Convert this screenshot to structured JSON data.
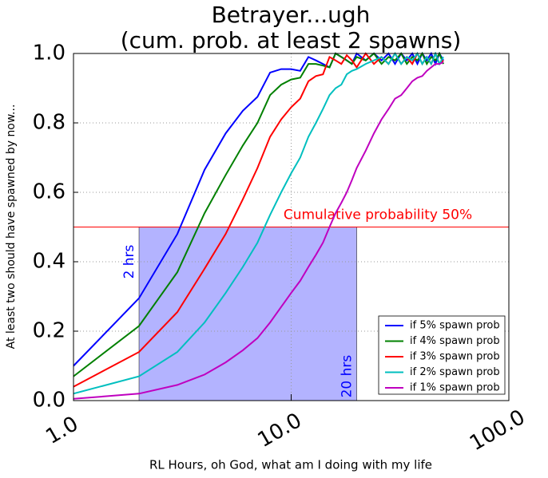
{
  "chart_data": {
    "type": "line",
    "title": "Betrayer...ugh",
    "subtitle": "(cum. prob. at least 2 spawns)",
    "x_label": "RL Hours, oh God, what am I doing with my life",
    "y_label": "At least two should have spawned by now...",
    "log_x": true,
    "grid": true,
    "legend": "lower right",
    "xlim": [
      1,
      100
    ],
    "xticks": [
      {
        "value": 1,
        "label": "1.0"
      },
      {
        "value": 10,
        "label": "10.0"
      },
      {
        "value": 100,
        "label": "100.0"
      }
    ],
    "ylim": [
      0,
      1
    ],
    "yticks": [
      {
        "value": 0,
        "label": "0.0"
      },
      0.2,
      0.4,
      0.6,
      0.8,
      {
        "value": 1,
        "label": "1.0"
      }
    ],
    "x": [
      1,
      2,
      3,
      4,
      5,
      6,
      7,
      8,
      9,
      10,
      11,
      12,
      13,
      14,
      15,
      16,
      17,
      18,
      19,
      20,
      22,
      24,
      26,
      28,
      30,
      32,
      34,
      36,
      38,
      40,
      42,
      44,
      46,
      48,
      50
    ],
    "series": [
      {
        "name": "if 5% spawn prob",
        "color": "#0000ff",
        "values": [
          0.1,
          0.295,
          0.48,
          0.665,
          0.77,
          0.835,
          0.875,
          0.945,
          0.955,
          0.955,
          0.95,
          0.99,
          0.98,
          0.97,
          0.96,
          1.0,
          0.99,
          0.98,
          0.97,
          1.0,
          0.98,
          1.0,
          0.98,
          1.0,
          0.97,
          1.0,
          0.98,
          1.0,
          0.97,
          1.0,
          0.98,
          1.0,
          0.97,
          1.0,
          0.98
        ]
      },
      {
        "name": "if 4% spawn prob",
        "color": "#008000",
        "values": [
          0.07,
          0.215,
          0.37,
          0.54,
          0.65,
          0.735,
          0.8,
          0.88,
          0.91,
          0.925,
          0.93,
          0.97,
          0.97,
          0.965,
          0.96,
          1.0,
          0.99,
          0.98,
          0.97,
          0.99,
          0.98,
          1.0,
          0.97,
          0.99,
          0.98,
          1.0,
          0.97,
          0.99,
          0.98,
          1.0,
          0.97,
          0.99,
          0.98,
          1.0,
          0.97
        ]
      },
      {
        "name": "if 3% spawn prob",
        "color": "#ff0000",
        "values": [
          0.04,
          0.14,
          0.255,
          0.38,
          0.48,
          0.58,
          0.67,
          0.76,
          0.81,
          0.845,
          0.87,
          0.92,
          0.935,
          0.94,
          0.99,
          0.98,
          0.97,
          0.995,
          0.98,
          0.96,
          1.0,
          0.97,
          0.99,
          0.97,
          1.0,
          0.97,
          0.99,
          0.97,
          1.0,
          0.97,
          0.99,
          0.97,
          1.0,
          0.97,
          0.98
        ]
      },
      {
        "name": "if 2% spawn prob",
        "color": "#00bfbf",
        "values": [
          0.02,
          0.07,
          0.14,
          0.225,
          0.31,
          0.385,
          0.455,
          0.535,
          0.6,
          0.655,
          0.7,
          0.76,
          0.8,
          0.84,
          0.88,
          0.9,
          0.91,
          0.94,
          0.95,
          0.955,
          0.97,
          0.98,
          0.99,
          0.97,
          1.0,
          0.97,
          0.99,
          0.98,
          1.0,
          0.97,
          0.99,
          0.97,
          1.0,
          0.97,
          0.99
        ]
      },
      {
        "name": "if 1% spawn prob",
        "color": "#bf00bf",
        "values": [
          0.005,
          0.02,
          0.045,
          0.075,
          0.11,
          0.145,
          0.18,
          0.225,
          0.27,
          0.31,
          0.345,
          0.385,
          0.42,
          0.455,
          0.5,
          0.54,
          0.57,
          0.6,
          0.635,
          0.67,
          0.72,
          0.77,
          0.81,
          0.84,
          0.87,
          0.88,
          0.9,
          0.92,
          0.93,
          0.935,
          0.95,
          0.96,
          0.97,
          0.97,
          0.975
        ]
      }
    ],
    "hline": {
      "value": 0.5,
      "label": "Cumulative probability 50%",
      "color": "#ff0000"
    },
    "span": {
      "x": [
        2,
        20
      ],
      "y": [
        0,
        0.5
      ],
      "color": "#b3b3ff",
      "labels": [
        "2 hrs",
        "20 hrs"
      ],
      "label_color": "#0000ff"
    }
  }
}
